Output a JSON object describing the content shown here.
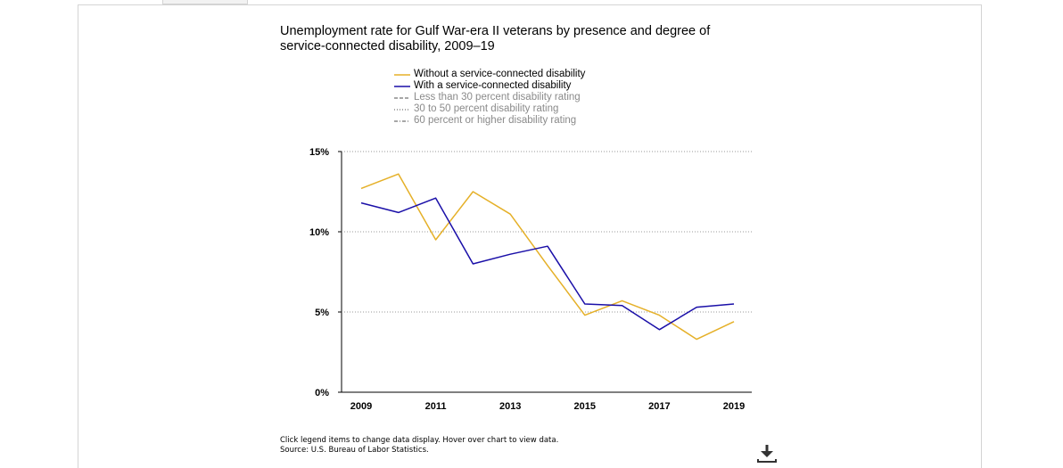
{
  "title": "Unemployment rate for Gulf War-era II veterans by presence and degree of service-connected disability, 2009–19",
  "legend": [
    {
      "label": "Without a service-connected disability",
      "color": "#e5b028",
      "dash": "solid",
      "active": true
    },
    {
      "label": "With a service-connected disability",
      "color": "#1a0fa8",
      "dash": "solid",
      "active": true
    },
    {
      "label": "Less than 30 percent disability rating",
      "color": "#8a8a8a",
      "dash": "dashed",
      "active": false
    },
    {
      "label": "30 to 50 percent disability rating",
      "color": "#8a8a8a",
      "dash": "dotted",
      "active": false
    },
    {
      "label": "60 percent or higher disability rating",
      "color": "#8a8a8a",
      "dash": "dashdot",
      "active": false
    }
  ],
  "footer": {
    "note": "Click legend items to change data display. Hover over chart to view data.",
    "source": "Source: U.S. Bureau of Labor Statistics."
  },
  "icons": {
    "download": "download-icon"
  },
  "chart_data": {
    "type": "line",
    "title": "Unemployment rate for Gulf War-era II veterans by presence and degree of service-connected disability, 2009–19",
    "x": [
      2009,
      2010,
      2011,
      2012,
      2013,
      2014,
      2015,
      2016,
      2017,
      2018,
      2019
    ],
    "x_tick_labels": [
      "2009",
      "2011",
      "2013",
      "2015",
      "2017",
      "2019"
    ],
    "x_ticks": [
      2009,
      2011,
      2013,
      2015,
      2017,
      2019
    ],
    "y_tick_labels": [
      "0%",
      "5%",
      "10%",
      "15%"
    ],
    "y_ticks": [
      0,
      5,
      10,
      15
    ],
    "ylim": [
      0,
      15
    ],
    "grid": true,
    "legend_position": "top",
    "series": [
      {
        "name": "Without a service-connected disability",
        "color": "#e5b028",
        "values": [
          12.7,
          13.6,
          9.5,
          12.5,
          11.1,
          7.9,
          4.8,
          5.7,
          4.8,
          3.3,
          4.4
        ]
      },
      {
        "name": "With a service-connected disability",
        "color": "#1a0fa8",
        "values": [
          11.8,
          11.2,
          12.1,
          8.0,
          8.6,
          9.1,
          5.5,
          5.4,
          3.9,
          5.3,
          5.5
        ]
      }
    ]
  }
}
